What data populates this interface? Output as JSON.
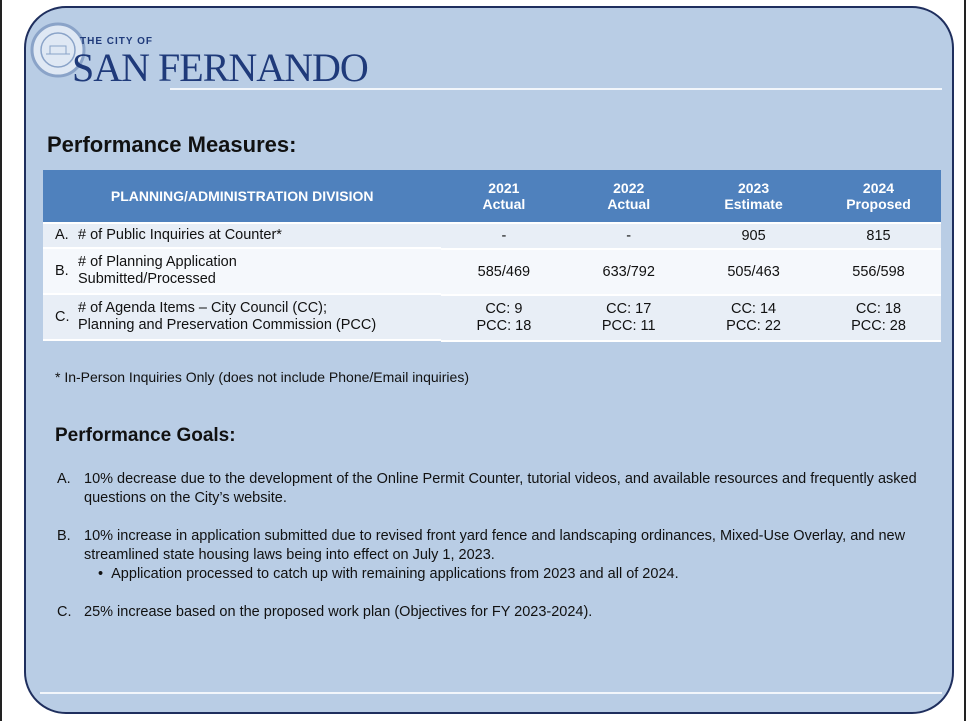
{
  "logo": {
    "top": "THE CITY OF",
    "name": "SAN FERNANDO"
  },
  "measures": {
    "title": "Performance Measures:",
    "table": {
      "header": {
        "division": "PLANNING/ADMINISTRATION DIVISION",
        "columns": [
          [
            "2021",
            "Actual"
          ],
          [
            "2022",
            "Actual"
          ],
          [
            "2023",
            "Estimate"
          ],
          [
            "2024",
            "Proposed"
          ]
        ]
      },
      "rows": [
        {
          "letter": "A.",
          "label": [
            "# of Public Inquiries at Counter*"
          ],
          "cells": [
            [
              "-"
            ],
            [
              "-"
            ],
            [
              "905"
            ],
            [
              "815"
            ]
          ]
        },
        {
          "letter": "B.",
          "label": [
            "# of Planning Application",
            "Submitted/Processed"
          ],
          "cells": [
            [
              "585/469"
            ],
            [
              "633/792"
            ],
            [
              "505/463"
            ],
            [
              "556/598"
            ]
          ]
        },
        {
          "letter": "C.",
          "label": [
            "# of Agenda Items – City Council (CC);",
            "Planning and Preservation Commission (PCC)"
          ],
          "cells": [
            [
              "CC: 9",
              "PCC: 18"
            ],
            [
              "CC: 17",
              "PCC: 11"
            ],
            [
              "CC: 14",
              "PCC: 22"
            ],
            [
              "CC: 18",
              "PCC: 28"
            ]
          ]
        }
      ]
    },
    "footnote": "* In-Person Inquiries Only (does not include Phone/Email inquiries)"
  },
  "goals": {
    "title": "Performance Goals:",
    "items": [
      {
        "letter": "A.",
        "text": "10% decrease due to the development of the Online Permit Counter, tutorial videos, and available resources and frequently asked questions on the City’s website.",
        "subitems": []
      },
      {
        "letter": "B.",
        "text": "10% increase in application submitted due to revised front yard fence and landscaping ordinances, Mixed-Use Overlay, and new streamlined state housing laws being into effect on July 1, 2023.",
        "subitems": [
          "Application processed to catch up with remaining applications from 2023 and all of 2024."
        ]
      },
      {
        "letter": "C.",
        "text": "25% increase based on the proposed work plan (Objectives for FY 2023-2024).",
        "subitems": []
      }
    ]
  }
}
